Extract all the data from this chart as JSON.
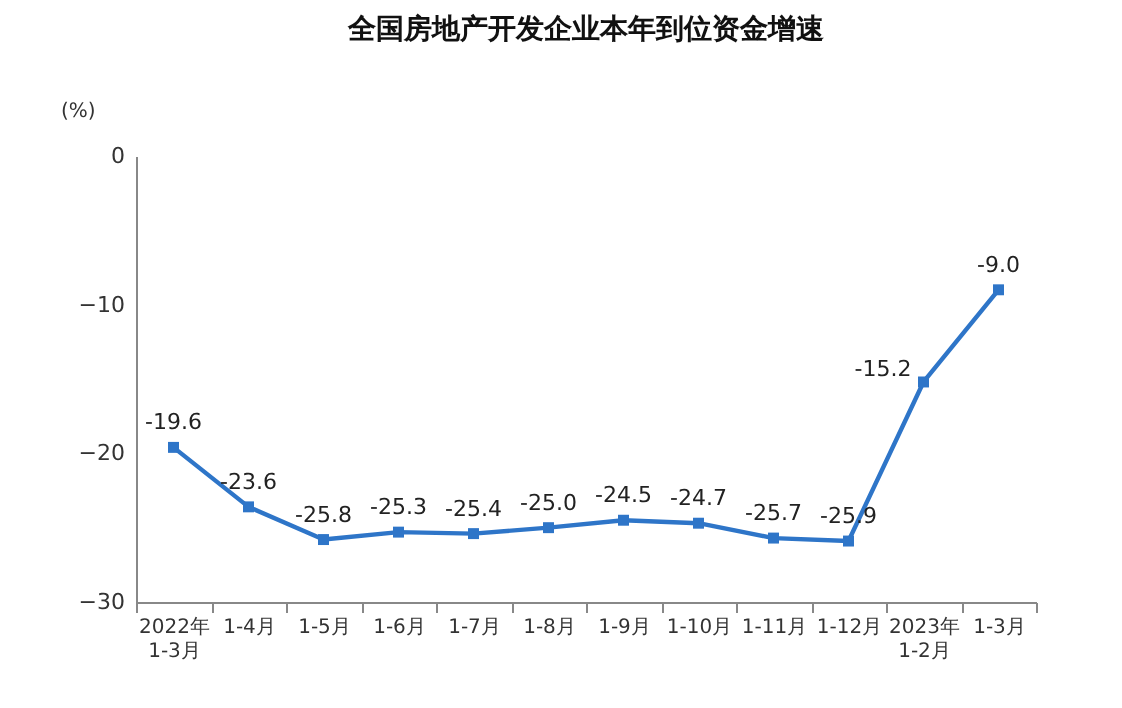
{
  "chart_data": {
    "type": "line",
    "title": "全国房地产开发企业本年到位资金增速",
    "ylabel": "(%)",
    "categories": [
      "2022年\n1-3月",
      "1-4月",
      "1-5月",
      "1-6月",
      "1-7月",
      "1-8月",
      "1-9月",
      "1-10月",
      "1-11月",
      "1-12月",
      "2023年\n1-2月",
      "1-3月"
    ],
    "series": [
      {
        "color": "#2e75c8",
        "values": [
          -19.6,
          -23.6,
          -25.8,
          -25.3,
          -25.4,
          -25.0,
          -24.5,
          -24.7,
          -25.7,
          -25.9,
          -15.2,
          -9.0
        ],
        "value_labels": [
          "-19.6",
          "-23.6",
          "-25.8",
          "-25.3",
          "-25.4",
          "-25.0",
          "-24.5",
          "-24.7",
          "-25.7",
          "-25.9",
          "-15.2",
          "-9.0"
        ]
      }
    ],
    "ylim": [
      -30,
      0
    ],
    "yticks": [
      -30,
      -20,
      -10,
      0
    ],
    "grid": false,
    "legend": false,
    "marker": "square",
    "line_style": "solid"
  }
}
